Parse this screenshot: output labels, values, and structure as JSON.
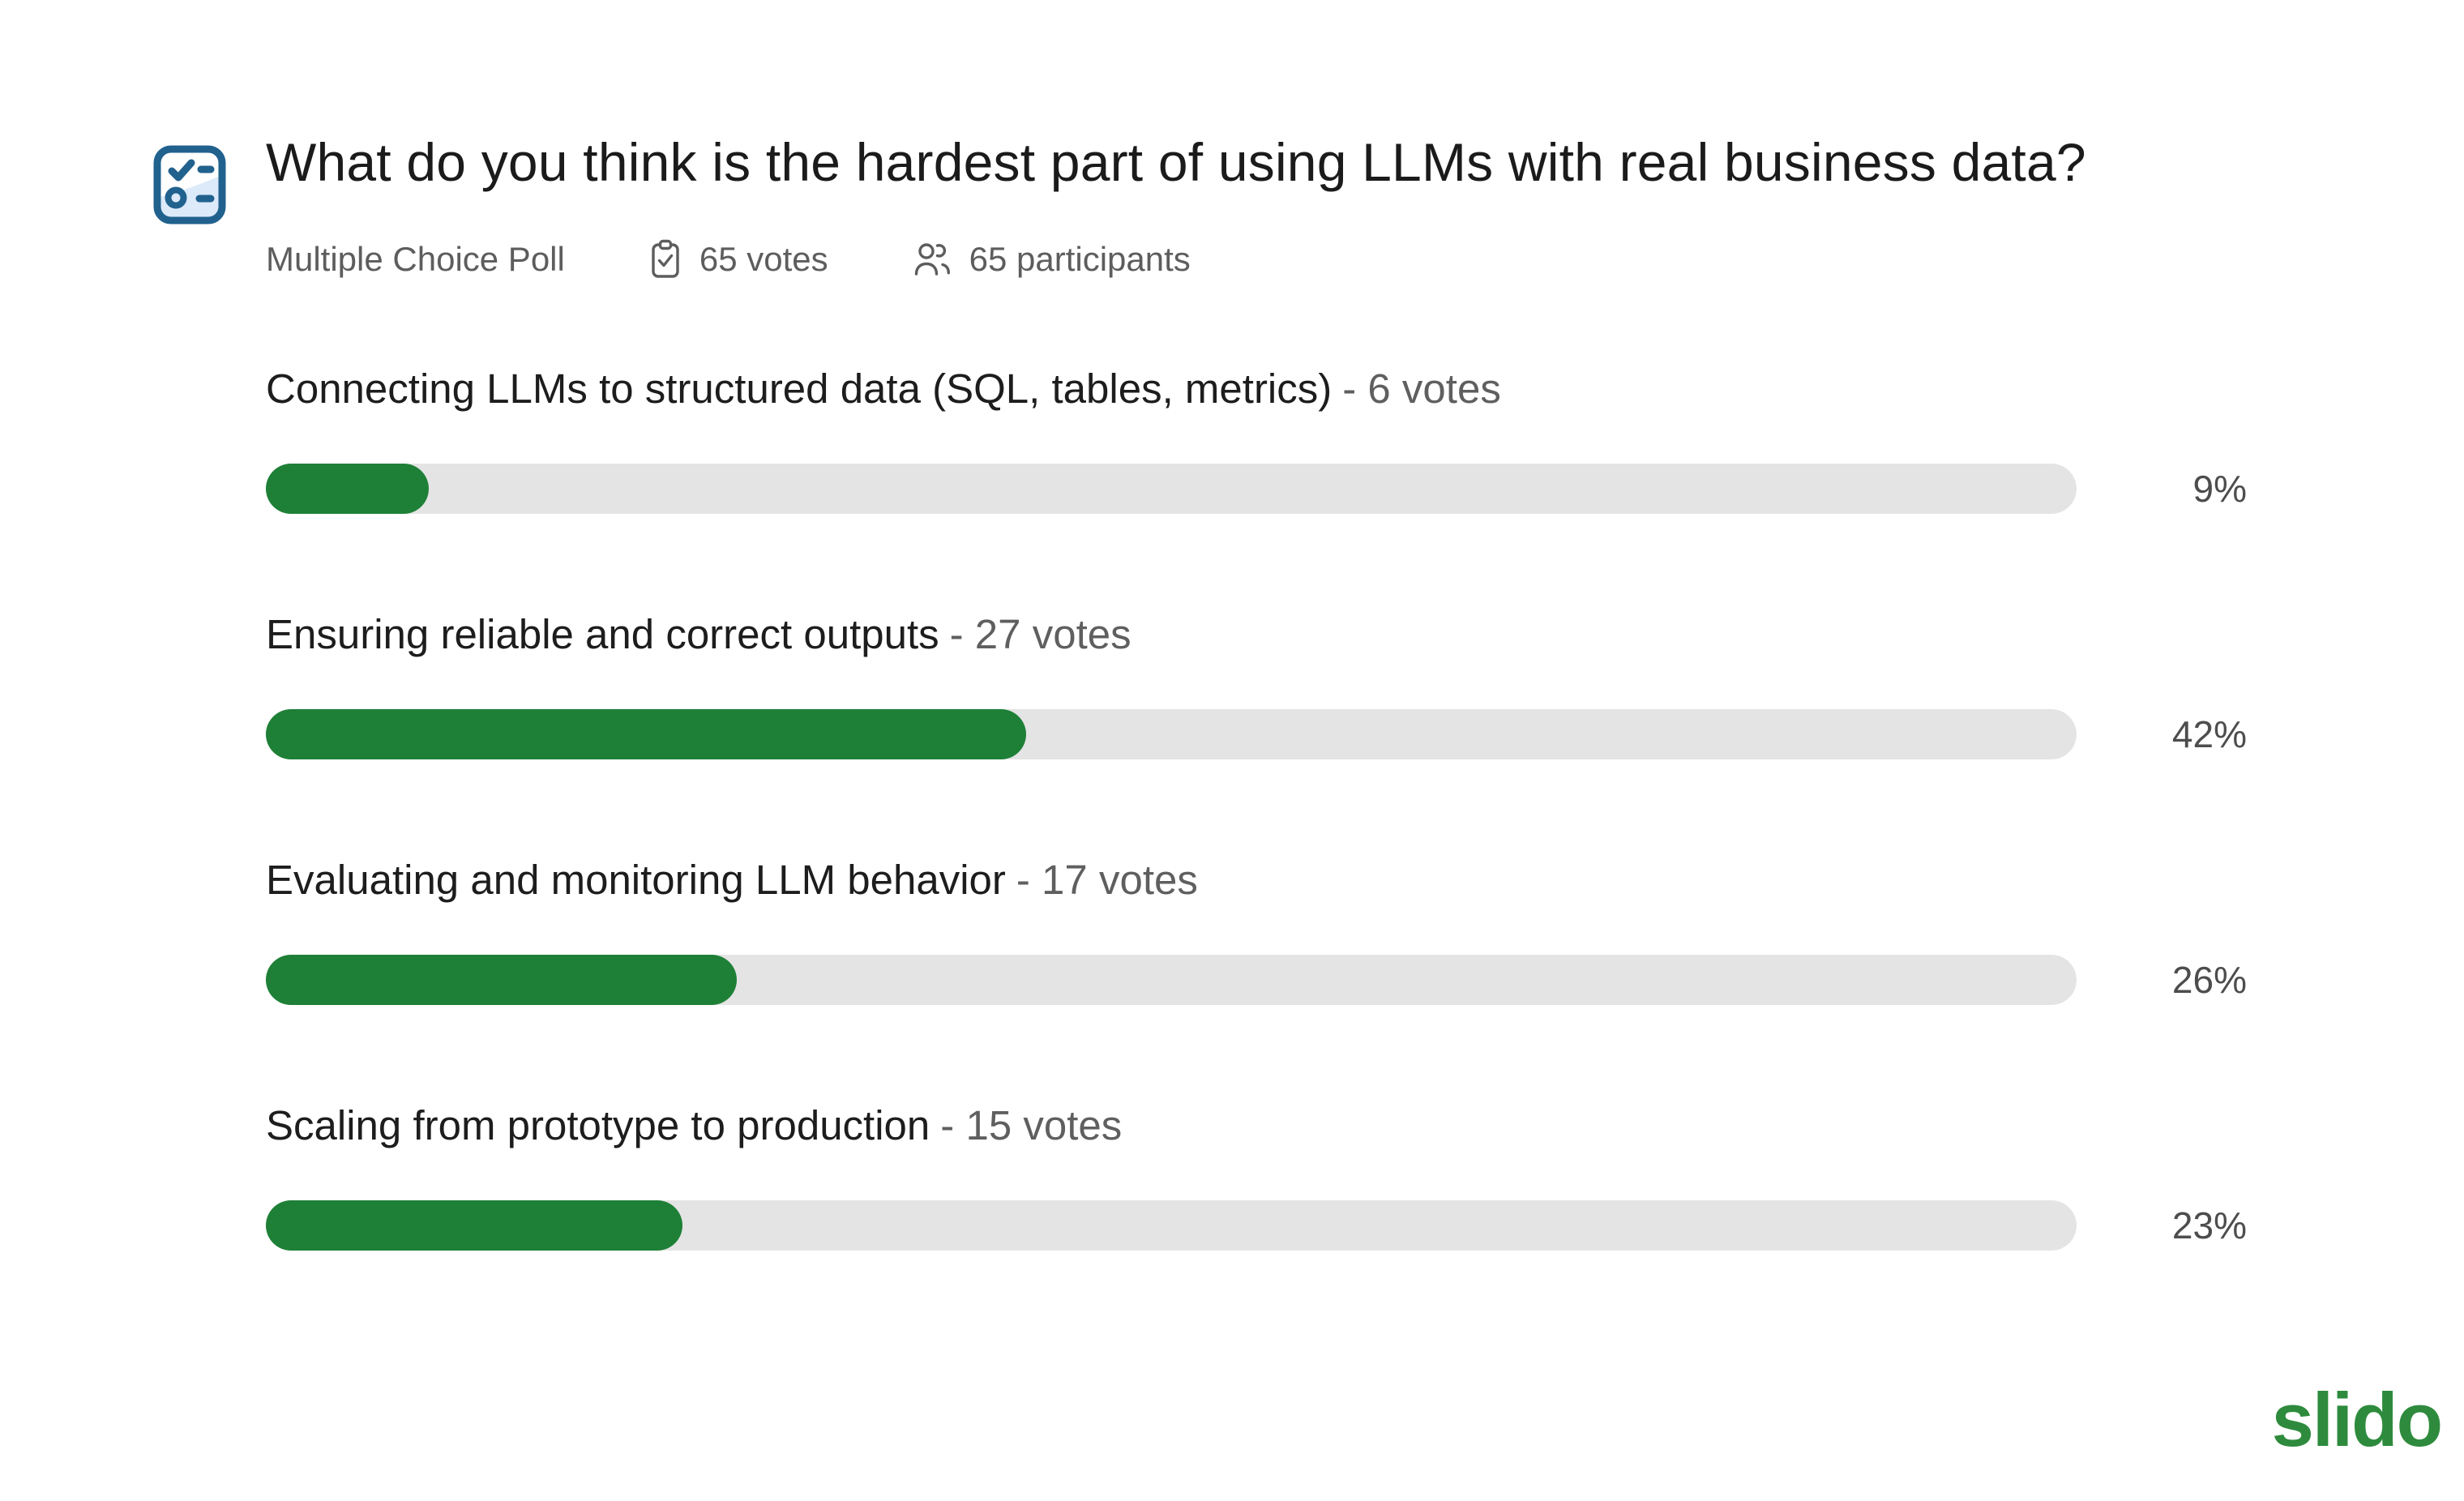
{
  "poll": {
    "title": "What do you think is the hardest part of using LLMs with real business data?",
    "type_label": "Multiple Choice Poll",
    "votes_label": "65 votes",
    "participants_label": "65 participants",
    "options": [
      {
        "label": "Connecting LLMs to structured data (SQL, tables, metrics)",
        "votes_suffix": "- 6 votes",
        "percent_label": "9%",
        "percent_value": 9,
        "votes": 6
      },
      {
        "label": "Ensuring reliable and correct outputs",
        "votes_suffix": "- 27 votes",
        "percent_label": "42%",
        "percent_value": 42,
        "votes": 27
      },
      {
        "label": "Evaluating and monitoring LLM behavior",
        "votes_suffix": "- 17 votes",
        "percent_label": "26%",
        "percent_value": 26,
        "votes": 17
      },
      {
        "label": "Scaling from prototype to production",
        "votes_suffix": "- 15 votes",
        "percent_label": "23%",
        "percent_value": 23,
        "votes": 15
      }
    ]
  },
  "branding": {
    "logo_text": "slido"
  },
  "colors": {
    "background": "#ffffff",
    "bar_fill": "#1e8037",
    "bar_track": "#e4e4e4",
    "title_text": "#1b1b1b",
    "muted_text": "#5d5d5d",
    "percent_text": "#4d4d4d",
    "poll_icon_blue": "#21618e",
    "logo_green": "#2e8b3d"
  },
  "chart_data": {
    "type": "bar",
    "orientation": "horizontal",
    "title": "What do you think is the hardest part of using LLMs with real business data?",
    "subtitle": "Multiple Choice Poll",
    "categories": [
      "Connecting LLMs to structured data (SQL, tables, metrics)",
      "Ensuring reliable and correct outputs",
      "Evaluating and monitoring LLM behavior",
      "Scaling from prototype to production"
    ],
    "series": [
      {
        "name": "votes",
        "values": [
          6,
          27,
          17,
          15
        ]
      },
      {
        "name": "percent",
        "values": [
          9,
          42,
          26,
          23
        ]
      }
    ],
    "total_votes": 65,
    "participants": 65,
    "xlim": [
      0,
      100
    ],
    "grid": false,
    "legend": false,
    "value_labels": [
      "9%",
      "42%",
      "26%",
      "23%"
    ]
  }
}
